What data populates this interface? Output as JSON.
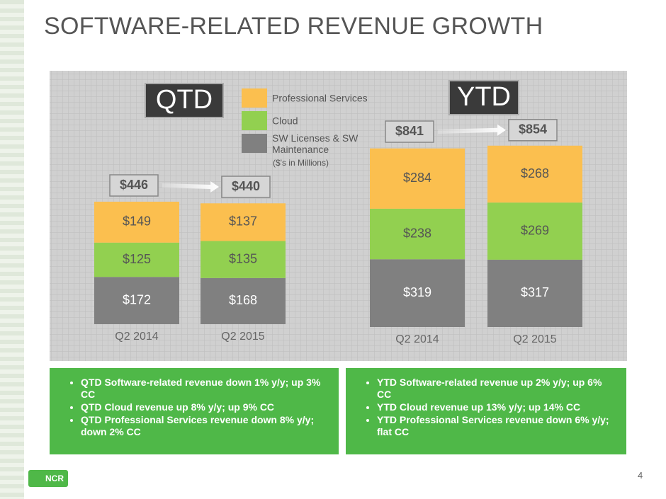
{
  "title": "SOFTWARE-RELATED REVENUE GROWTH",
  "note": "($'s in Millions)",
  "chart_data": [
    {
      "type": "bar",
      "stacked": true,
      "title": "QTD",
      "categories": [
        "Q2 2014",
        "Q2 2015"
      ],
      "totals": [
        "$446",
        "$440"
      ],
      "series": [
        {
          "name": "SW Licenses & SW Maintenance",
          "color": "#808080",
          "values": [
            172,
            168
          ],
          "value_labels": [
            "$172",
            "$168"
          ]
        },
        {
          "name": "Cloud",
          "color": "#92d050",
          "values": [
            125,
            135
          ],
          "value_labels": [
            "$125",
            "$135"
          ]
        },
        {
          "name": "Professional Services",
          "color": "#fbbf4f",
          "values": [
            149,
            137
          ],
          "value_labels": [
            "$149",
            "$137"
          ]
        }
      ]
    },
    {
      "type": "bar",
      "stacked": true,
      "title": "YTD",
      "categories": [
        "Q2 2014",
        "Q2 2015"
      ],
      "totals": [
        "$841",
        "$854"
      ],
      "series": [
        {
          "color": "#808080",
          "values": [
            319,
            317
          ],
          "value_labels": [
            "$319",
            "$317"
          ]
        },
        {
          "color": "#92d050",
          "values": [
            238,
            269
          ],
          "value_labels": [
            "$238",
            "$269"
          ]
        },
        {
          "color": "#fbbf4f",
          "values": [
            284,
            268
          ],
          "value_labels": [
            "$284",
            "$268"
          ]
        }
      ]
    }
  ],
  "panels": [
    [
      "QTD Software-related revenue down 1% y/y; up 3% CC",
      "QTD Cloud revenue up 8% y/y; up 9% CC",
      "QTD Professional Services revenue down 8% y/y; down 2% CC"
    ],
    [
      "YTD Software-related revenue up 2% y/y; up 6% CC",
      "YTD Cloud revenue up 13% y/y; up 14% CC",
      "YTD Professional Services revenue down 6% y/y; flat CC"
    ]
  ],
  "logo": "NCR",
  "page_number": "4"
}
